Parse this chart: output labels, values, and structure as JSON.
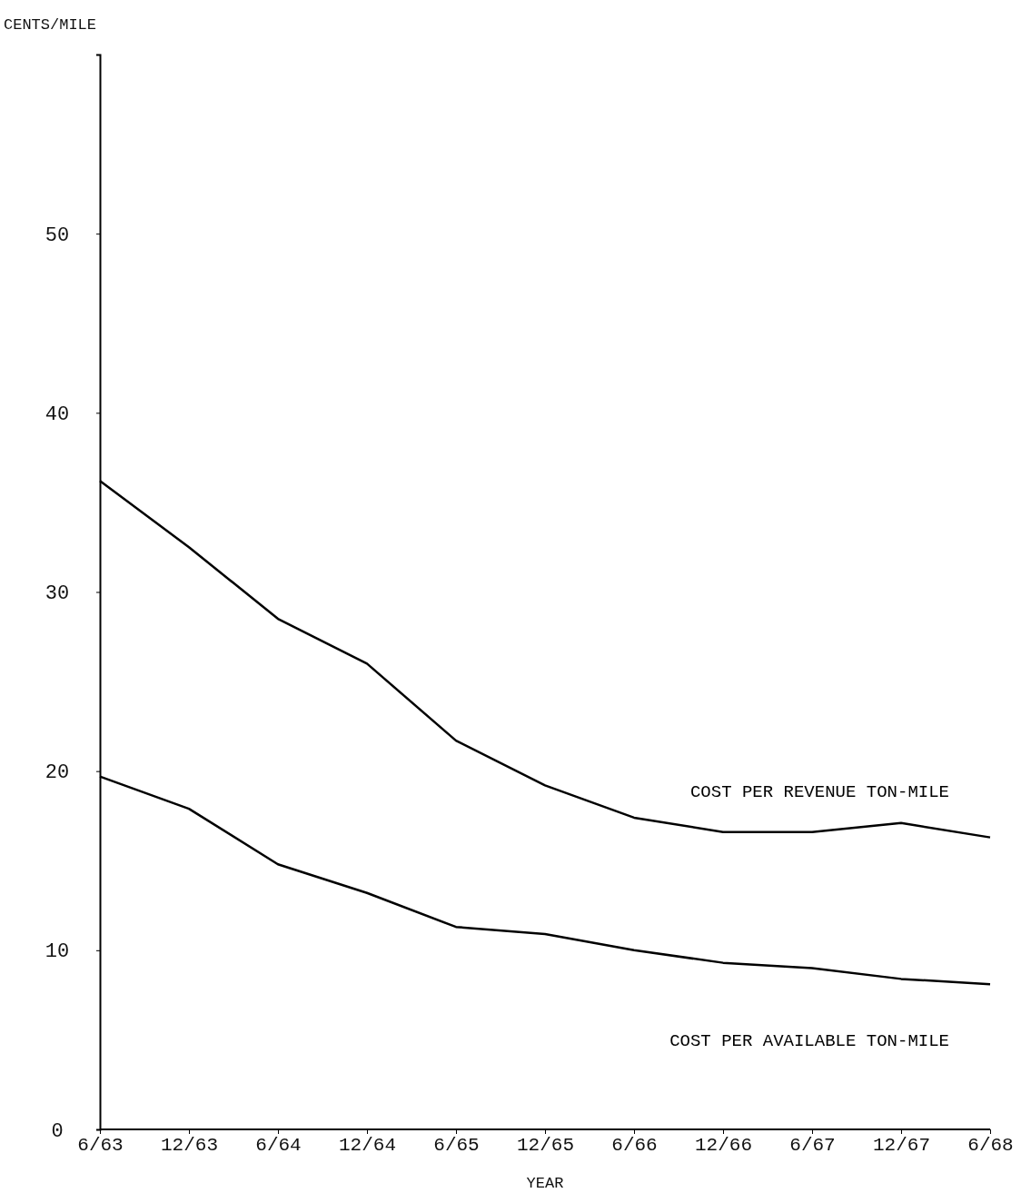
{
  "chart_data": {
    "type": "line",
    "xlabel": "YEAR",
    "ylabel": "CENTS/MILE",
    "categories": [
      "6/63",
      "12/63",
      "6/64",
      "12/64",
      "6/65",
      "12/65",
      "6/66",
      "12/66",
      "6/67",
      "12/67",
      "6/68"
    ],
    "series": [
      {
        "name": "COST PER REVENUE TON-MILE",
        "color": "#000000",
        "values": [
          36.2,
          32.5,
          28.5,
          26.0,
          21.7,
          19.2,
          17.4,
          16.6,
          16.6,
          17.1,
          16.3
        ]
      },
      {
        "name": "COST PER AVAILABLE TON-MILE",
        "color": "#000000",
        "values": [
          19.7,
          17.9,
          14.8,
          13.2,
          11.3,
          10.9,
          10.0,
          9.3,
          9.0,
          8.4,
          8.1
        ]
      }
    ],
    "ylim": [
      0,
      60
    ],
    "yticks": [
      0,
      10,
      20,
      30,
      40,
      50
    ],
    "grid": false,
    "legend": false,
    "marker": "none",
    "line_style": "solid"
  }
}
